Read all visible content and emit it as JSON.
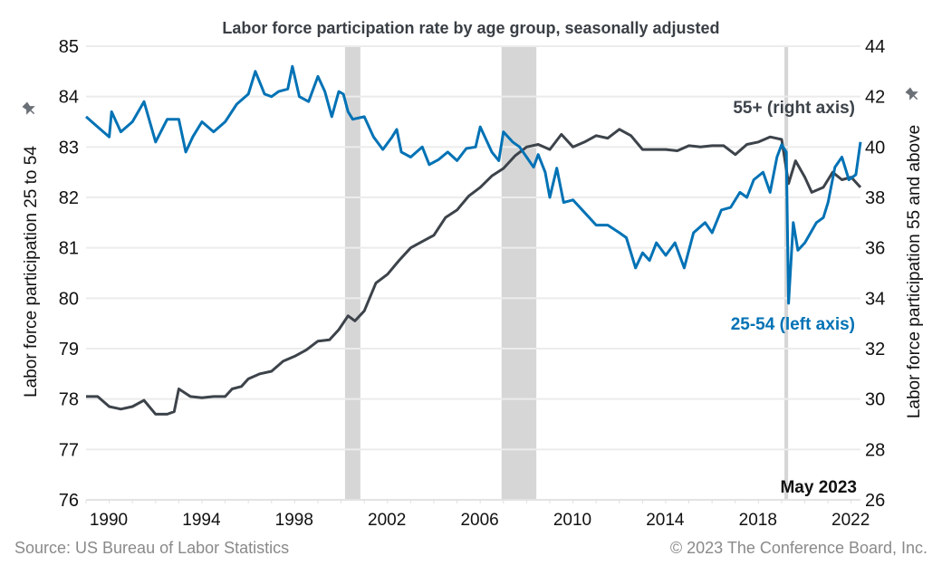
{
  "chart_data": {
    "type": "line",
    "title": "Labor force participation rate by age group, seasonally adjusted",
    "ylabel_left": "Labor force participation 25 to 54",
    "ylabel_right": "Labor force participation 55 and above",
    "ylim_left": [
      76,
      85
    ],
    "ylim_right": [
      26,
      44
    ],
    "xlim": [
      1990,
      2023.4
    ],
    "x_ticks": [
      1990,
      1994,
      1998,
      2002,
      2006,
      2010,
      2014,
      2018,
      2022
    ],
    "y_ticks_left": [
      76,
      77,
      78,
      79,
      80,
      81,
      82,
      83,
      84,
      85
    ],
    "y_ticks_right": [
      26,
      28,
      30,
      32,
      34,
      36,
      38,
      40,
      42,
      44
    ],
    "grid": true,
    "recessions": [
      [
        2001.17,
        2001.83
      ],
      [
        2007.92,
        2009.42
      ],
      [
        2020.12,
        2020.28
      ]
    ],
    "annotation": "May 2023",
    "series": [
      {
        "name": "25-54 (left axis)",
        "axis": "left",
        "color": "#0072b5",
        "x": [
          1990.0,
          1990.5,
          1991.0,
          1991.1,
          1991.5,
          1992.0,
          1992.5,
          1993.0,
          1993.5,
          1994.0,
          1994.3,
          1994.6,
          1995.0,
          1995.5,
          1996.0,
          1996.5,
          1997.0,
          1997.3,
          1997.7,
          1998.0,
          1998.3,
          1998.7,
          1998.9,
          1999.2,
          1999.6,
          2000.0,
          2000.3,
          2000.6,
          2000.9,
          2001.1,
          2001.3,
          2001.5,
          2002.0,
          2002.4,
          2002.8,
          2003.2,
          2003.4,
          2003.6,
          2004.0,
          2004.5,
          2004.8,
          2005.2,
          2005.6,
          2006.0,
          2006.4,
          2006.8,
          2007.0,
          2007.5,
          2007.8,
          2008.0,
          2008.4,
          2008.7,
          2009.0,
          2009.3,
          2009.5,
          2009.8,
          2010.0,
          2010.3,
          2010.6,
          2011.0,
          2011.5,
          2012.0,
          2012.5,
          2013.0,
          2013.3,
          2013.7,
          2014.0,
          2014.3,
          2014.6,
          2015.0,
          2015.4,
          2015.8,
          2016.2,
          2016.7,
          2017.0,
          2017.4,
          2017.8,
          2018.2,
          2018.5,
          2018.8,
          2019.2,
          2019.5,
          2019.8,
          2020.0,
          2020.2,
          2020.3,
          2020.5,
          2020.7,
          2021.0,
          2021.5,
          2021.8,
          2022.0,
          2022.3,
          2022.6,
          2022.9,
          2023.2,
          2023.4
        ],
        "values": [
          83.6,
          83.4,
          83.2,
          83.7,
          83.3,
          83.5,
          83.9,
          83.1,
          83.55,
          83.55,
          82.9,
          83.2,
          83.5,
          83.3,
          83.5,
          83.85,
          84.05,
          84.5,
          84.05,
          84.0,
          84.1,
          84.15,
          84.6,
          84.0,
          83.9,
          84.4,
          84.1,
          83.6,
          84.1,
          84.05,
          83.7,
          83.55,
          83.6,
          83.2,
          82.95,
          83.2,
          83.35,
          82.9,
          82.8,
          83.0,
          82.65,
          82.75,
          82.9,
          82.73,
          82.97,
          83.0,
          83.4,
          82.9,
          82.73,
          83.3,
          83.1,
          83.0,
          82.8,
          82.6,
          82.85,
          82.5,
          82.0,
          82.58,
          81.9,
          81.95,
          81.7,
          81.45,
          81.45,
          81.3,
          81.2,
          80.6,
          80.9,
          80.75,
          81.1,
          80.85,
          81.1,
          80.6,
          81.3,
          81.5,
          81.3,
          81.75,
          81.8,
          82.1,
          82.0,
          82.35,
          82.5,
          82.1,
          82.8,
          83.05,
          82.9,
          79.9,
          81.5,
          80.95,
          81.1,
          81.5,
          81.6,
          81.9,
          82.6,
          82.8,
          82.35,
          82.45,
          83.1
        ]
      },
      {
        "name": "55+ (right axis)",
        "axis": "right",
        "color": "#3d434a",
        "x": [
          1990.0,
          1990.5,
          1991.0,
          1991.5,
          1992.0,
          1992.5,
          1993.0,
          1993.5,
          1993.8,
          1994.0,
          1994.5,
          1995.0,
          1995.5,
          1996.0,
          1996.3,
          1996.7,
          1997.0,
          1997.5,
          1998.0,
          1998.5,
          1999.0,
          1999.5,
          2000.0,
          2000.5,
          2000.9,
          2001.3,
          2001.6,
          2002.0,
          2002.5,
          2003.0,
          2003.5,
          2004.0,
          2004.5,
          2005.0,
          2005.5,
          2006.0,
          2006.5,
          2007.0,
          2007.5,
          2008.0,
          2008.5,
          2009.0,
          2009.5,
          2010.0,
          2010.5,
          2011.0,
          2011.5,
          2012.0,
          2012.5,
          2013.0,
          2013.5,
          2014.0,
          2014.5,
          2015.0,
          2015.5,
          2016.0,
          2016.5,
          2017.0,
          2017.5,
          2018.0,
          2018.5,
          2019.0,
          2019.5,
          2020.0,
          2020.3,
          2020.6,
          2021.0,
          2021.3,
          2021.8,
          2022.2,
          2022.6,
          2023.0,
          2023.4
        ],
        "values": [
          30.1,
          30.1,
          29.7,
          29.6,
          29.7,
          29.95,
          29.4,
          29.4,
          29.5,
          30.4,
          30.1,
          30.05,
          30.1,
          30.1,
          30.4,
          30.5,
          30.8,
          31.0,
          31.1,
          31.5,
          31.7,
          31.95,
          32.3,
          32.35,
          32.75,
          33.3,
          33.1,
          33.5,
          34.6,
          34.95,
          35.5,
          36.0,
          36.25,
          36.5,
          37.2,
          37.5,
          38.05,
          38.4,
          38.85,
          39.15,
          39.65,
          40.0,
          40.1,
          39.9,
          40.5,
          40.0,
          40.2,
          40.45,
          40.35,
          40.7,
          40.45,
          39.9,
          39.9,
          39.9,
          39.85,
          40.05,
          40.0,
          40.05,
          40.05,
          39.7,
          40.1,
          40.2,
          40.4,
          40.3,
          38.55,
          39.45,
          38.8,
          38.2,
          38.4,
          39.0,
          38.7,
          38.8,
          38.4
        ]
      }
    ]
  },
  "footer": {
    "source": "Source: US Bureau of Labor Statistics",
    "copyright": "© 2023 The Conference Board, Inc."
  },
  "icons": {
    "axis_label_marker": "pin-icon"
  }
}
